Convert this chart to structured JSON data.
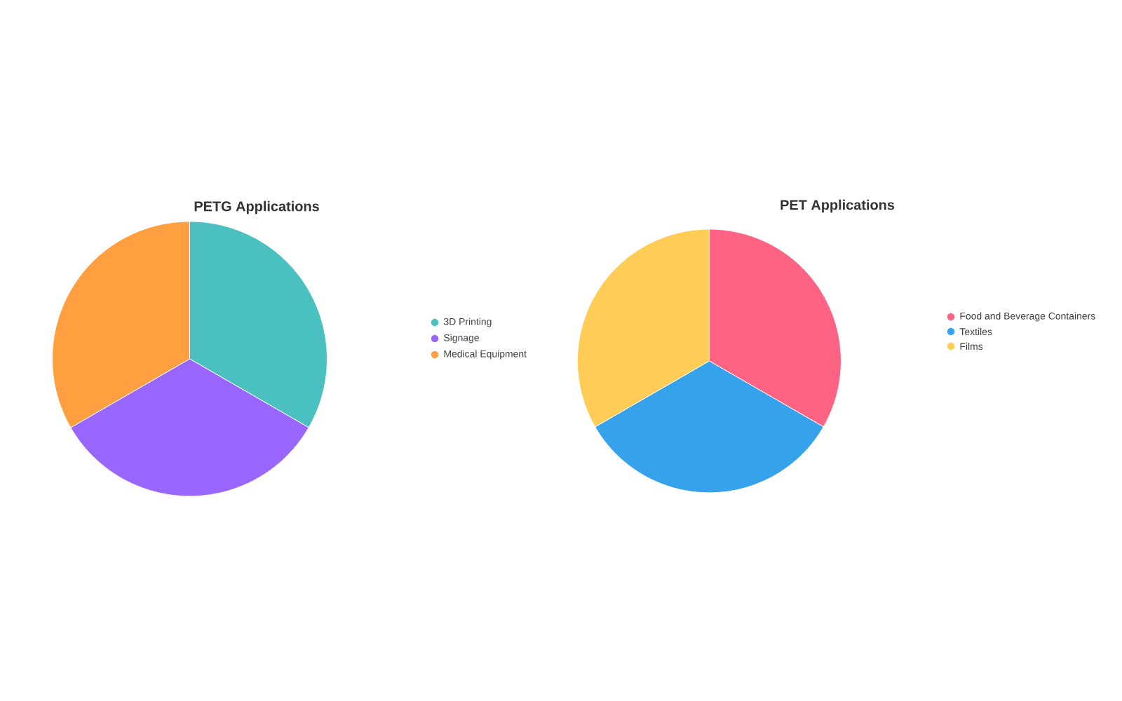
{
  "chart_data": [
    {
      "type": "pie",
      "title": "PETG Applications",
      "categories": [
        "3D Printing",
        "Signage",
        "Medical Equipment"
      ],
      "values": [
        33.33,
        33.33,
        33.34
      ],
      "colors": [
        "#4bc0c0",
        "#9966ff",
        "#ff9f40"
      ],
      "legend": "right"
    },
    {
      "type": "pie",
      "title": "PET Applications",
      "categories": [
        "Food and Beverage Containers",
        "Textiles",
        "Films"
      ],
      "values": [
        33.33,
        33.33,
        33.34
      ],
      "colors": [
        "#ff6384",
        "#36a2eb",
        "#ffcd56"
      ],
      "legend": "right"
    }
  ]
}
